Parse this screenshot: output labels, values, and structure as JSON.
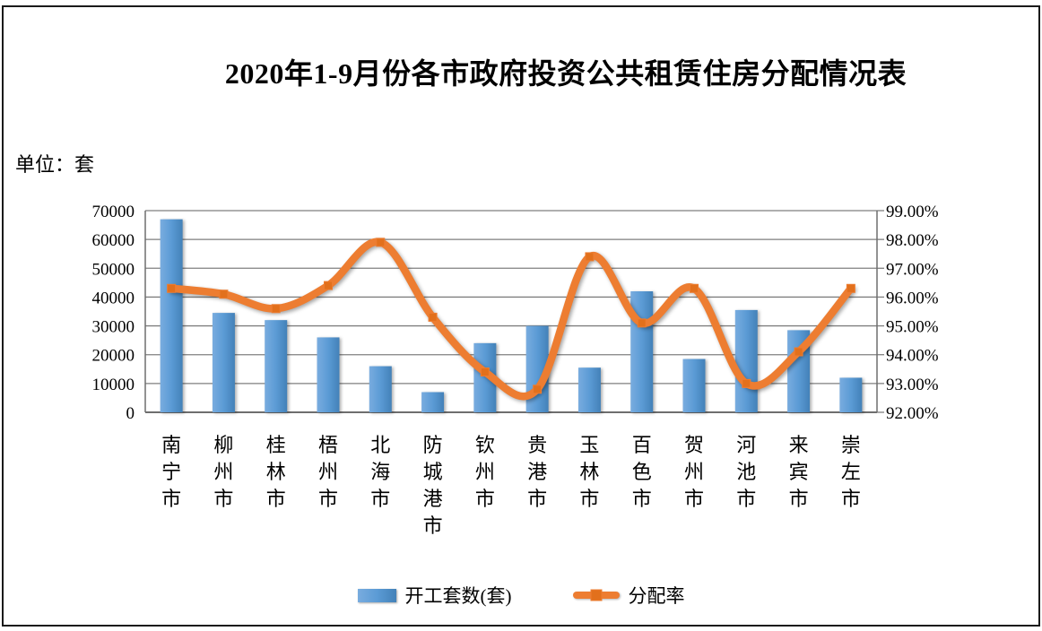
{
  "title": "2020年1-9月份各市政府投资公共租赁住房分配情况表",
  "unit_label": "单位：套",
  "legend": {
    "items": [
      {
        "label": "开工套数(套)",
        "swatch": "blue-bar"
      },
      {
        "label": "分配率",
        "swatch": "orange-line"
      }
    ]
  },
  "colors": {
    "bar_main": "#5B9BD5",
    "bar_light": "#79ACDF",
    "bar_dark": "#4381B8",
    "line": "#ED7D31",
    "line_marker": "#E2701C",
    "gridline": "#7F7F7F",
    "axis": "#6E6E6E",
    "text": "#000000"
  },
  "chart_data": {
    "type": "bar+line",
    "title": "2020年1-9月份各市政府投资公共租赁住房分配情况表",
    "unit": "套",
    "grid": true,
    "legend_position": "bottom",
    "categories": [
      "南宁市",
      "柳州市",
      "桂林市",
      "梧州市",
      "北海市",
      "防城港市",
      "钦州市",
      "贵港市",
      "玉林市",
      "百色市",
      "贺州市",
      "河池市",
      "来宾市",
      "崇左市"
    ],
    "series": [
      {
        "name": "开工套数(套)",
        "type": "bar",
        "axis": "left",
        "color": "#5B9BD5",
        "values": [
          67000,
          34500,
          32000,
          26000,
          16000,
          7000,
          24000,
          30000,
          15500,
          42000,
          18500,
          35500,
          28500,
          12000
        ]
      },
      {
        "name": "分配率",
        "type": "line",
        "axis": "right",
        "color": "#ED7D31",
        "values_percent": [
          96.3,
          96.1,
          95.6,
          96.4,
          97.9,
          95.3,
          93.4,
          92.8,
          97.4,
          95.1,
          96.3,
          93.0,
          94.1,
          96.3
        ]
      }
    ],
    "left_axis": {
      "min": 0,
      "max": 70000,
      "step": 10000,
      "ticks": [
        "0",
        "10000",
        "20000",
        "30000",
        "40000",
        "50000",
        "60000",
        "70000"
      ]
    },
    "right_axis": {
      "min": 92,
      "max": 99,
      "step": 1,
      "ticks": [
        "92.00%",
        "93.00%",
        "94.00%",
        "95.00%",
        "96.00%",
        "97.00%",
        "98.00%",
        "99.00%"
      ]
    }
  }
}
